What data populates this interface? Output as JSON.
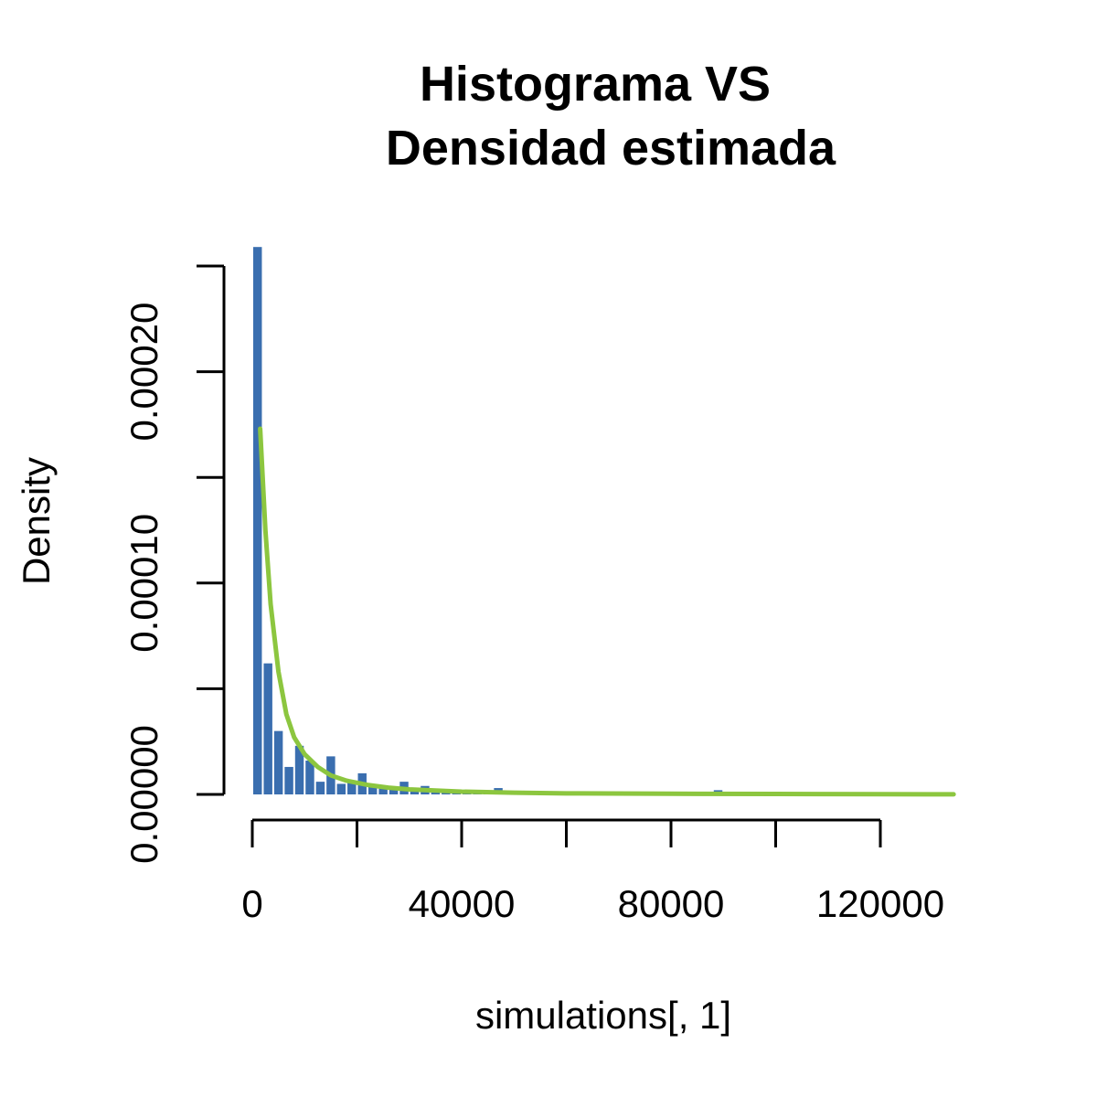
{
  "chart_data": {
    "type": "bar",
    "title_line1": "Histograma VS",
    "title_line2": "Densidad estimada",
    "xlabel": "simulations[, 1]",
    "ylabel": "Density",
    "xlim": [
      0,
      135000
    ],
    "ylim": [
      0,
      0.00025
    ],
    "x_ticks": [
      0,
      20000,
      40000,
      60000,
      80000,
      100000,
      120000
    ],
    "x_tick_labels": [
      "0",
      "",
      "40000",
      "",
      "80000",
      "",
      "120000"
    ],
    "y_ticks": [
      0,
      5e-05,
      0.0001,
      0.00015,
      0.0002,
      0.00025
    ],
    "y_tick_labels": [
      "0.00000",
      "",
      "0.00010",
      "",
      "0.00020",
      ""
    ],
    "bin_width": 2000,
    "bins_start": [
      0,
      2000,
      4000,
      6000,
      8000,
      10000,
      12000,
      14000,
      16000,
      18000,
      20000,
      22000,
      24000,
      26000,
      28000,
      30000,
      32000,
      34000,
      36000,
      38000,
      40000,
      42000,
      44000,
      46000,
      48000,
      50000,
      86000,
      88000
    ],
    "densities": [
      0.000259,
      6.2e-05,
      3e-05,
      1.3e-05,
      2.3e-05,
      1.6e-05,
      6e-06,
      1.8e-05,
      5e-06,
      6e-06,
      1e-05,
      4e-06,
      3e-06,
      3e-06,
      6e-06,
      2e-06,
      4e-06,
      1e-06,
      1e-06,
      1e-06,
      1e-06,
      1e-06,
      1e-06,
      3e-06,
      1e-06,
      1e-06,
      1e-06,
      2e-06
    ],
    "bar_color": "#3a6eaf",
    "density_color": "#8cc63f",
    "density_curve": {
      "x": [
        1500,
        2500,
        3500,
        5000,
        6500,
        8000,
        10000,
        12500,
        15000,
        18000,
        22000,
        26000,
        30000,
        40000,
        50000,
        60000,
        80000,
        100000,
        120000,
        134000
      ],
      "y": [
        0.000173,
        0.000125,
        9e-05,
        5.8e-05,
        3.8e-05,
        2.7e-05,
        1.9e-05,
        1.3e-05,
        9e-06,
        6.5e-06,
        4.5e-06,
        3.2e-06,
        2.4e-06,
        1.3e-06,
        8e-07,
        5e-07,
        3e-07,
        2e-07,
        1e-07,
        5e-08
      ]
    }
  }
}
